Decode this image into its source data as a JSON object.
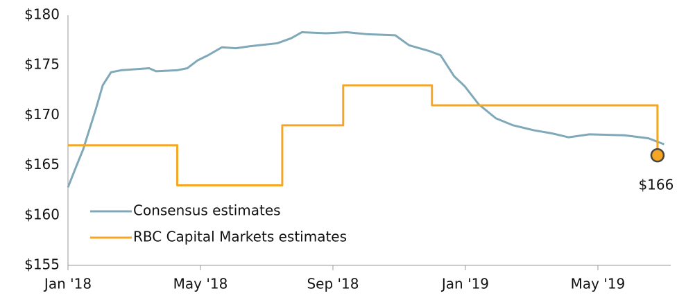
{
  "chart_data": {
    "type": "line",
    "xlim": [
      0,
      18.2
    ],
    "xticks": [
      {
        "value": 0,
        "label": "Jan '18"
      },
      {
        "value": 4,
        "label": "May '18"
      },
      {
        "value": 8,
        "label": "Sep '18"
      },
      {
        "value": 12,
        "label": "Jan '19"
      },
      {
        "value": 16,
        "label": "May '19"
      }
    ],
    "ylim": [
      155,
      180
    ],
    "yticks": [
      {
        "value": 155,
        "label": "$155"
      },
      {
        "value": 160,
        "label": "$160"
      },
      {
        "value": 165,
        "label": "$165"
      },
      {
        "value": 170,
        "label": "$170"
      },
      {
        "value": 175,
        "label": "$175"
      },
      {
        "value": 180,
        "label": "$180"
      }
    ],
    "grid": false,
    "legend": "bottom-left",
    "series": [
      {
        "name": "Consensus estimates",
        "color": "#7fa8b8",
        "x": [
          0,
          0.25,
          0.46,
          0.63,
          0.84,
          1.05,
          1.3,
          1.6,
          2.45,
          2.66,
          3.29,
          3.6,
          3.92,
          4.23,
          4.65,
          5.07,
          5.49,
          6.32,
          6.74,
          7.06,
          7.79,
          8.42,
          9.05,
          9.88,
          10.3,
          10.93,
          11.25,
          11.66,
          11.98,
          12.4,
          12.92,
          13.44,
          14.07,
          14.6,
          15.12,
          15.75,
          16.8,
          17.53,
          18.0
        ],
        "values": [
          162.8,
          164.9,
          166.6,
          168.4,
          170.6,
          173.0,
          174.3,
          174.5,
          174.7,
          174.4,
          174.5,
          174.7,
          175.5,
          176.0,
          176.8,
          176.7,
          176.9,
          177.2,
          177.7,
          178.3,
          178.2,
          178.3,
          178.1,
          178.0,
          177.0,
          176.4,
          176.0,
          173.9,
          172.9,
          171.1,
          169.7,
          169.0,
          168.5,
          168.2,
          167.8,
          168.1,
          168.0,
          167.7,
          167.1
        ]
      },
      {
        "name": "RBC Capital Markets estimates",
        "color": "#f5a623",
        "x": [
          0,
          3.3,
          3.3,
          6.47,
          6.47,
          8.31,
          8.31,
          10.99,
          10.99,
          17.8,
          17.8
        ],
        "values": [
          167,
          167,
          163,
          163,
          169,
          169,
          173,
          173,
          171,
          171,
          166
        ]
      }
    ],
    "annotations": [
      {
        "text": "$166",
        "x": 17.8,
        "y": 166,
        "color": "#f5a623"
      }
    ]
  }
}
